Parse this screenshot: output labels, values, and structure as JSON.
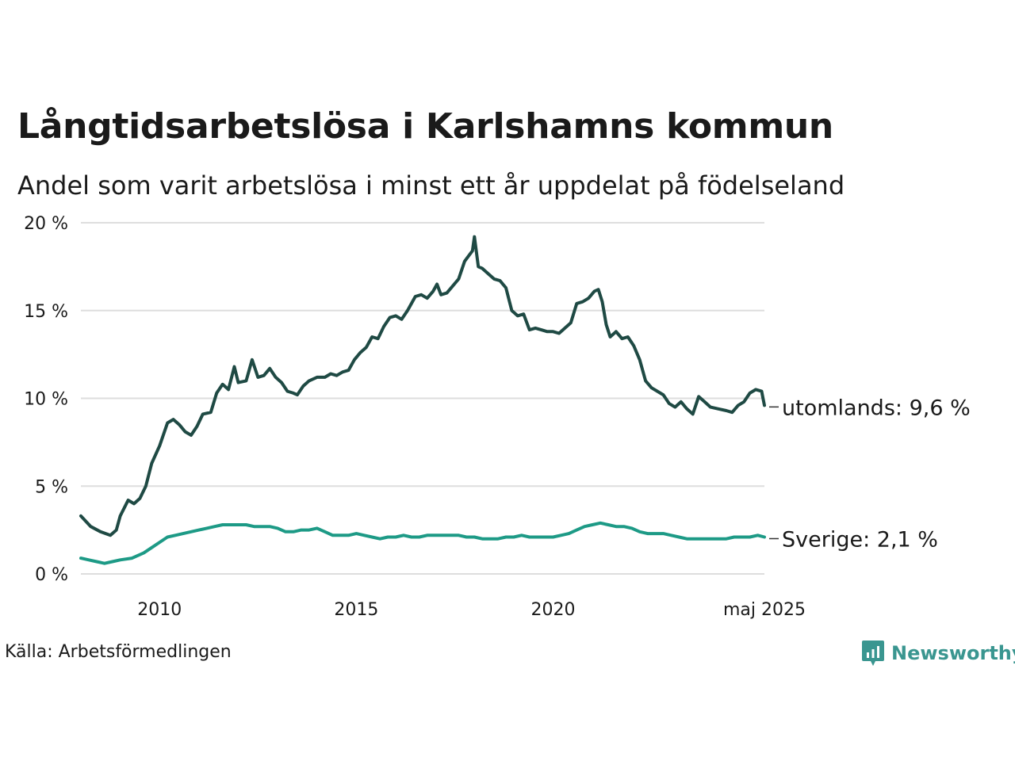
{
  "title": "Långtidsarbetslösa i Karlshamns kommun",
  "subtitle": "Andel som varit arbetslösa i minst ett år uppdelat på födelseland",
  "source": "Källa: Arbetsförmedlingen",
  "brand": {
    "name": "Newsworthy",
    "color": "#3a9690",
    "icon": "newsworthy-logo-icon"
  },
  "chart_data": {
    "type": "line",
    "y_ticks": [
      "20 %",
      "15 %",
      "10 %",
      "5 %",
      "0 %"
    ],
    "x_ticks": [
      "2010",
      "2015",
      "2020",
      "maj 2025"
    ],
    "ylim": [
      0,
      20
    ],
    "xlim": [
      2008.0,
      2025.37
    ],
    "grid": true,
    "series": [
      {
        "name": "utomlands",
        "end_label": "utomlands: 9,6 %",
        "color": "#1f4a44",
        "points": [
          [
            2008.0,
            3.3
          ],
          [
            2008.25,
            2.7
          ],
          [
            2008.5,
            2.4
          ],
          [
            2008.75,
            2.2
          ],
          [
            2008.9,
            2.5
          ],
          [
            2009.0,
            3.3
          ],
          [
            2009.2,
            4.2
          ],
          [
            2009.35,
            4.0
          ],
          [
            2009.5,
            4.3
          ],
          [
            2009.65,
            5.0
          ],
          [
            2009.8,
            6.3
          ],
          [
            2010.0,
            7.3
          ],
          [
            2010.2,
            8.6
          ],
          [
            2010.35,
            8.8
          ],
          [
            2010.5,
            8.5
          ],
          [
            2010.65,
            8.1
          ],
          [
            2010.8,
            7.9
          ],
          [
            2010.95,
            8.4
          ],
          [
            2011.1,
            9.1
          ],
          [
            2011.3,
            9.2
          ],
          [
            2011.45,
            10.3
          ],
          [
            2011.6,
            10.8
          ],
          [
            2011.75,
            10.5
          ],
          [
            2011.9,
            11.8
          ],
          [
            2012.0,
            10.9
          ],
          [
            2012.2,
            11.0
          ],
          [
            2012.35,
            12.2
          ],
          [
            2012.5,
            11.2
          ],
          [
            2012.65,
            11.3
          ],
          [
            2012.8,
            11.7
          ],
          [
            2012.95,
            11.2
          ],
          [
            2013.1,
            10.9
          ],
          [
            2013.25,
            10.4
          ],
          [
            2013.4,
            10.3
          ],
          [
            2013.5,
            10.2
          ],
          [
            2013.65,
            10.7
          ],
          [
            2013.8,
            11.0
          ],
          [
            2014.0,
            11.2
          ],
          [
            2014.2,
            11.2
          ],
          [
            2014.35,
            11.4
          ],
          [
            2014.5,
            11.3
          ],
          [
            2014.65,
            11.5
          ],
          [
            2014.8,
            11.6
          ],
          [
            2014.95,
            12.2
          ],
          [
            2015.1,
            12.6
          ],
          [
            2015.25,
            12.9
          ],
          [
            2015.4,
            13.5
          ],
          [
            2015.55,
            13.4
          ],
          [
            2015.7,
            14.1
          ],
          [
            2015.85,
            14.6
          ],
          [
            2016.0,
            14.7
          ],
          [
            2016.15,
            14.5
          ],
          [
            2016.3,
            15.0
          ],
          [
            2016.5,
            15.8
          ],
          [
            2016.65,
            15.9
          ],
          [
            2016.8,
            15.7
          ],
          [
            2016.95,
            16.1
          ],
          [
            2017.05,
            16.5
          ],
          [
            2017.15,
            15.9
          ],
          [
            2017.3,
            16.0
          ],
          [
            2017.45,
            16.4
          ],
          [
            2017.6,
            16.8
          ],
          [
            2017.75,
            17.8
          ],
          [
            2017.85,
            18.1
          ],
          [
            2017.95,
            18.4
          ],
          [
            2018.0,
            19.2
          ],
          [
            2018.1,
            17.5
          ],
          [
            2018.2,
            17.4
          ],
          [
            2018.35,
            17.1
          ],
          [
            2018.5,
            16.8
          ],
          [
            2018.65,
            16.7
          ],
          [
            2018.8,
            16.3
          ],
          [
            2018.95,
            15.0
          ],
          [
            2019.1,
            14.7
          ],
          [
            2019.25,
            14.8
          ],
          [
            2019.4,
            13.9
          ],
          [
            2019.55,
            14.0
          ],
          [
            2019.7,
            13.9
          ],
          [
            2019.85,
            13.8
          ],
          [
            2020.0,
            13.8
          ],
          [
            2020.15,
            13.7
          ],
          [
            2020.3,
            14.0
          ],
          [
            2020.45,
            14.3
          ],
          [
            2020.6,
            15.4
          ],
          [
            2020.75,
            15.5
          ],
          [
            2020.9,
            15.7
          ],
          [
            2021.05,
            16.1
          ],
          [
            2021.15,
            16.2
          ],
          [
            2021.25,
            15.5
          ],
          [
            2021.35,
            14.2
          ],
          [
            2021.45,
            13.5
          ],
          [
            2021.6,
            13.8
          ],
          [
            2021.75,
            13.4
          ],
          [
            2021.9,
            13.5
          ],
          [
            2022.05,
            13.0
          ],
          [
            2022.2,
            12.2
          ],
          [
            2022.35,
            11.0
          ],
          [
            2022.5,
            10.6
          ],
          [
            2022.65,
            10.4
          ],
          [
            2022.8,
            10.2
          ],
          [
            2022.95,
            9.7
          ],
          [
            2023.1,
            9.5
          ],
          [
            2023.25,
            9.8
          ],
          [
            2023.4,
            9.4
          ],
          [
            2023.55,
            9.1
          ],
          [
            2023.7,
            10.1
          ],
          [
            2023.85,
            9.8
          ],
          [
            2024.0,
            9.5
          ],
          [
            2024.2,
            9.4
          ],
          [
            2024.4,
            9.3
          ],
          [
            2024.55,
            9.2
          ],
          [
            2024.7,
            9.6
          ],
          [
            2024.85,
            9.8
          ],
          [
            2025.0,
            10.3
          ],
          [
            2025.15,
            10.5
          ],
          [
            2025.3,
            10.4
          ],
          [
            2025.37,
            9.6
          ]
        ]
      },
      {
        "name": "Sverige",
        "end_label": "Sverige: 2,1 %",
        "color": "#1d9a86",
        "points": [
          [
            2008.0,
            0.9
          ],
          [
            2008.2,
            0.8
          ],
          [
            2008.4,
            0.7
          ],
          [
            2008.6,
            0.6
          ],
          [
            2008.8,
            0.7
          ],
          [
            2009.0,
            0.8
          ],
          [
            2009.3,
            0.9
          ],
          [
            2009.6,
            1.2
          ],
          [
            2009.8,
            1.5
          ],
          [
            2010.0,
            1.8
          ],
          [
            2010.2,
            2.1
          ],
          [
            2010.4,
            2.2
          ],
          [
            2010.6,
            2.3
          ],
          [
            2010.8,
            2.4
          ],
          [
            2011.0,
            2.5
          ],
          [
            2011.2,
            2.6
          ],
          [
            2011.4,
            2.7
          ],
          [
            2011.6,
            2.8
          ],
          [
            2011.8,
            2.8
          ],
          [
            2012.0,
            2.8
          ],
          [
            2012.2,
            2.8
          ],
          [
            2012.4,
            2.7
          ],
          [
            2012.6,
            2.7
          ],
          [
            2012.8,
            2.7
          ],
          [
            2013.0,
            2.6
          ],
          [
            2013.2,
            2.4
          ],
          [
            2013.4,
            2.4
          ],
          [
            2013.6,
            2.5
          ],
          [
            2013.8,
            2.5
          ],
          [
            2014.0,
            2.6
          ],
          [
            2014.2,
            2.4
          ],
          [
            2014.4,
            2.2
          ],
          [
            2014.6,
            2.2
          ],
          [
            2014.8,
            2.2
          ],
          [
            2015.0,
            2.3
          ],
          [
            2015.2,
            2.2
          ],
          [
            2015.4,
            2.1
          ],
          [
            2015.6,
            2.0
          ],
          [
            2015.8,
            2.1
          ],
          [
            2016.0,
            2.1
          ],
          [
            2016.2,
            2.2
          ],
          [
            2016.4,
            2.1
          ],
          [
            2016.6,
            2.1
          ],
          [
            2016.8,
            2.2
          ],
          [
            2017.0,
            2.2
          ],
          [
            2017.2,
            2.2
          ],
          [
            2017.4,
            2.2
          ],
          [
            2017.6,
            2.2
          ],
          [
            2017.8,
            2.1
          ],
          [
            2018.0,
            2.1
          ],
          [
            2018.2,
            2.0
          ],
          [
            2018.4,
            2.0
          ],
          [
            2018.6,
            2.0
          ],
          [
            2018.8,
            2.1
          ],
          [
            2019.0,
            2.1
          ],
          [
            2019.2,
            2.2
          ],
          [
            2019.4,
            2.1
          ],
          [
            2019.6,
            2.1
          ],
          [
            2019.8,
            2.1
          ],
          [
            2020.0,
            2.1
          ],
          [
            2020.2,
            2.2
          ],
          [
            2020.4,
            2.3
          ],
          [
            2020.6,
            2.5
          ],
          [
            2020.8,
            2.7
          ],
          [
            2021.0,
            2.8
          ],
          [
            2021.2,
            2.9
          ],
          [
            2021.4,
            2.8
          ],
          [
            2021.6,
            2.7
          ],
          [
            2021.8,
            2.7
          ],
          [
            2022.0,
            2.6
          ],
          [
            2022.2,
            2.4
          ],
          [
            2022.4,
            2.3
          ],
          [
            2022.6,
            2.3
          ],
          [
            2022.8,
            2.3
          ],
          [
            2023.0,
            2.2
          ],
          [
            2023.2,
            2.1
          ],
          [
            2023.4,
            2.0
          ],
          [
            2023.6,
            2.0
          ],
          [
            2023.8,
            2.0
          ],
          [
            2024.0,
            2.0
          ],
          [
            2024.2,
            2.0
          ],
          [
            2024.4,
            2.0
          ],
          [
            2024.6,
            2.1
          ],
          [
            2024.8,
            2.1
          ],
          [
            2025.0,
            2.1
          ],
          [
            2025.2,
            2.2
          ],
          [
            2025.37,
            2.1
          ]
        ]
      }
    ]
  }
}
